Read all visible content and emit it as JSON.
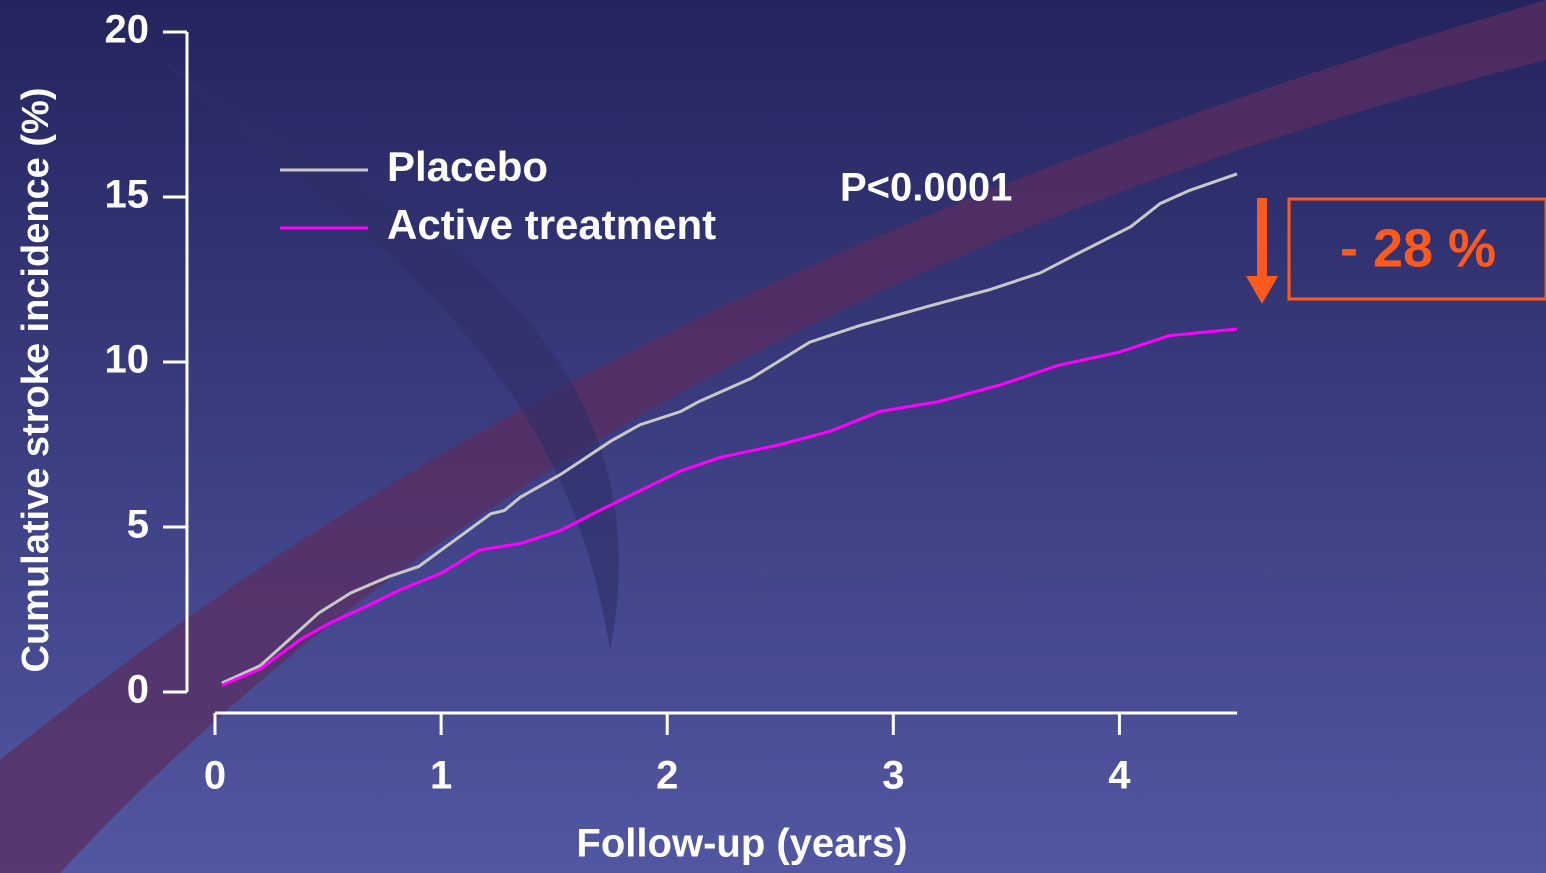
{
  "chart_data": {
    "type": "line",
    "xlabel": "Follow-up (years)",
    "ylabel": "Cumulative stroke incidence (%)",
    "xlim": [
      0,
      4.52
    ],
    "xticks": [
      0,
      1,
      2,
      3,
      4
    ],
    "ylim": [
      0,
      20
    ],
    "yticks": [
      0,
      5,
      10,
      15,
      20
    ],
    "legend": "upper left",
    "annotations": [
      "P<0.0001",
      "- 28 %"
    ],
    "series": [
      {
        "name": "Placebo",
        "color": "#c8c8c8",
        "x": [
          0.03,
          0.2,
          0.33,
          0.46,
          0.6,
          0.77,
          0.9,
          1.08,
          1.22,
          1.28,
          1.35,
          1.53,
          1.75,
          1.88,
          2.06,
          2.14,
          2.37,
          2.63,
          2.85,
          3.16,
          3.43,
          3.65,
          3.82,
          4.05,
          4.18,
          4.31,
          4.52
        ],
        "values": [
          0.27,
          0.8,
          1.6,
          2.4,
          3.0,
          3.5,
          3.8,
          4.7,
          5.4,
          5.5,
          5.9,
          6.6,
          7.6,
          8.1,
          8.5,
          8.8,
          9.5,
          10.6,
          11.1,
          11.7,
          12.2,
          12.7,
          13.3,
          14.1,
          14.8,
          15.2,
          15.7
        ]
      },
      {
        "name": "Active treatment",
        "color": "#ff00ff",
        "x": [
          0.03,
          0.2,
          0.38,
          0.51,
          0.64,
          0.82,
          1.0,
          1.17,
          1.35,
          1.53,
          1.7,
          1.88,
          2.06,
          2.23,
          2.5,
          2.72,
          2.94,
          3.2,
          3.47,
          3.73,
          4.0,
          4.22,
          4.52
        ],
        "values": [
          0.2,
          0.7,
          1.6,
          2.1,
          2.5,
          3.1,
          3.6,
          4.3,
          4.5,
          4.9,
          5.5,
          6.1,
          6.7,
          7.1,
          7.5,
          7.9,
          8.5,
          8.8,
          9.3,
          9.9,
          10.3,
          10.8,
          11.0
        ]
      }
    ]
  }
}
